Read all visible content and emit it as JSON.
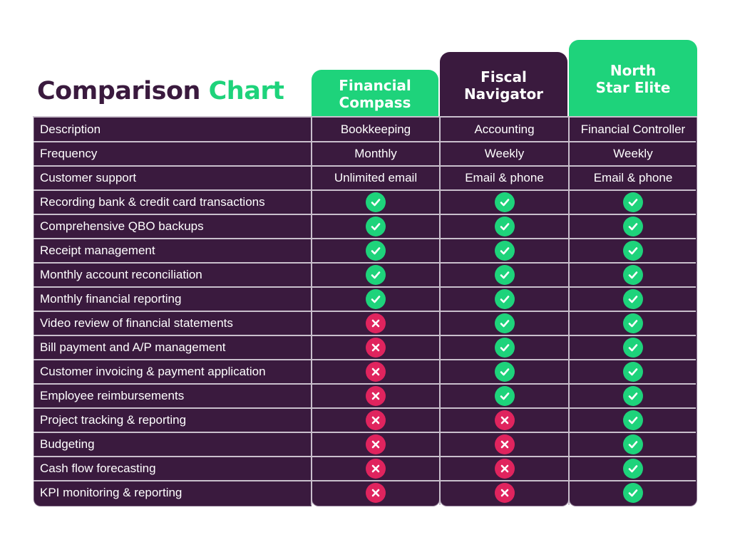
{
  "title": {
    "word1": "Comparison",
    "word2": "Chart"
  },
  "colors": {
    "purple": "#3a1a3e",
    "green": "#1ed37b",
    "red": "#e0245e",
    "divider": "#c9bfcc"
  },
  "plans": [
    {
      "name": "Financial\nCompass"
    },
    {
      "name": "Fiscal\nNavigator"
    },
    {
      "name": "North\nStar Elite"
    }
  ],
  "rows": [
    {
      "feature": "Description",
      "kind": "text",
      "values": [
        "Bookkeeping",
        "Accounting",
        "Financial Controller"
      ]
    },
    {
      "feature": "Frequency",
      "kind": "text",
      "values": [
        "Monthly",
        "Weekly",
        "Weekly"
      ]
    },
    {
      "feature": "Customer support",
      "kind": "text",
      "values": [
        "Unlimited email",
        "Email & phone",
        "Email & phone"
      ]
    },
    {
      "feature": "Recording bank & credit card transactions",
      "kind": "mark",
      "values": [
        true,
        true,
        true
      ]
    },
    {
      "feature": "Comprehensive QBO backups",
      "kind": "mark",
      "values": [
        true,
        true,
        true
      ]
    },
    {
      "feature": "Receipt management",
      "kind": "mark",
      "values": [
        true,
        true,
        true
      ]
    },
    {
      "feature": "Monthly account reconciliation",
      "kind": "mark",
      "values": [
        true,
        true,
        true
      ]
    },
    {
      "feature": "Monthly financial reporting",
      "kind": "mark",
      "values": [
        true,
        true,
        true
      ]
    },
    {
      "feature": "Video review of financial statements",
      "kind": "mark",
      "values": [
        false,
        true,
        true
      ]
    },
    {
      "feature": "Bill payment and A/P management",
      "kind": "mark",
      "values": [
        false,
        true,
        true
      ]
    },
    {
      "feature": "Customer invoicing & payment application",
      "kind": "mark",
      "values": [
        false,
        true,
        true
      ]
    },
    {
      "feature": "Employee reimbursements",
      "kind": "mark",
      "values": [
        false,
        true,
        true
      ]
    },
    {
      "feature": "Project tracking & reporting",
      "kind": "mark",
      "values": [
        false,
        false,
        true
      ]
    },
    {
      "feature": "Budgeting",
      "kind": "mark",
      "values": [
        false,
        false,
        true
      ]
    },
    {
      "feature": "Cash flow forecasting",
      "kind": "mark",
      "values": [
        false,
        false,
        true
      ]
    },
    {
      "feature": "KPI monitoring & reporting",
      "kind": "mark",
      "values": [
        false,
        false,
        true
      ]
    }
  ]
}
